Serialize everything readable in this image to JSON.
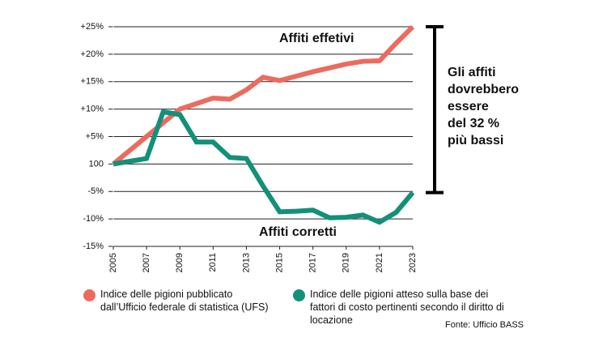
{
  "chart_data": {
    "type": "line",
    "x": [
      2005,
      2006,
      2007,
      2008,
      2009,
      2010,
      2011,
      2012,
      2013,
      2014,
      2015,
      2016,
      2017,
      2018,
      2019,
      2020,
      2021,
      2022,
      2023
    ],
    "series": [
      {
        "name": "Indice delle pigioni pubblicato dall’Ufficio federale di statistica (UFS)",
        "label": "Affiti effetivi",
        "color": "#ec6b5f",
        "values": [
          0,
          2.5,
          5,
          7.5,
          10,
          11,
          12,
          11.8,
          13.5,
          15.8,
          15.2,
          16,
          16.8,
          17.5,
          18.2,
          18.7,
          18.8,
          22,
          25
        ]
      },
      {
        "name": "Indice delle pigioni atteso sulla base dei fattori di costo pertinenti secondo il diritto di locazione",
        "label": "Affiti corretti",
        "color": "#13907a",
        "values": [
          0,
          0.5,
          1,
          9.5,
          9,
          4,
          4,
          1.2,
          1,
          -4,
          -8.7,
          -8.6,
          -8.4,
          -9.8,
          -9.7,
          -9.3,
          -10.6,
          -8.8,
          -5.2
        ]
      }
    ],
    "xlim": [
      2005,
      2023
    ],
    "xticks": [
      2005,
      2007,
      2009,
      2011,
      2013,
      2015,
      2017,
      2019,
      2021,
      2023
    ],
    "ylim": [
      -15,
      25
    ],
    "yticks": [
      {
        "value": 25,
        "label": "+25%"
      },
      {
        "value": 20,
        "label": "+20%"
      },
      {
        "value": 15,
        "label": "+15%"
      },
      {
        "value": 10,
        "label": "+10%"
      },
      {
        "value": 5,
        "label": "+5%"
      },
      {
        "value": 0,
        "label": "100"
      },
      {
        "value": -5,
        "label": "-5%"
      },
      {
        "value": -10,
        "label": "-10%"
      },
      {
        "value": -15,
        "label": "-15%"
      }
    ],
    "grid": true,
    "annotation": [
      "Gli affiti",
      "dovrebbero",
      "essere",
      "del 32 %",
      "più bassi"
    ],
    "source": "Fonte: Ufficio BASS"
  }
}
